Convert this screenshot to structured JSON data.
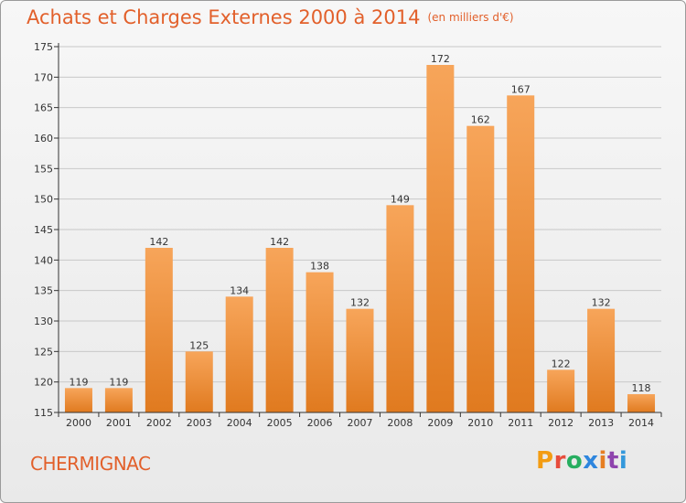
{
  "header": {
    "title": "Achats et Charges Externes 2000 à 2014",
    "subtitle": "(en milliers d'€)"
  },
  "footer": {
    "commune": "CHERMIGNAC",
    "logo": "Proxiti",
    "logo_colors": [
      "#f39c12",
      "#e74c3c",
      "#27ae60",
      "#2e86de",
      "#e67e22",
      "#8e44ad",
      "#3498db"
    ]
  },
  "colors": {
    "title": "#e2602b",
    "bar_light": "#f7a55a",
    "bar_dark": "#e07a1f",
    "grid": "#c8c8c8",
    "axis": "#333333"
  },
  "chart_data": {
    "type": "bar",
    "categories": [
      "2000",
      "2001",
      "2002",
      "2003",
      "2004",
      "2005",
      "2006",
      "2007",
      "2008",
      "2009",
      "2010",
      "2011",
      "2012",
      "2013",
      "2014"
    ],
    "values": [
      119,
      119,
      142,
      125,
      134,
      142,
      138,
      132,
      149,
      172,
      162,
      167,
      122,
      132,
      118
    ],
    "title": "Achats et Charges Externes 2000 à 2014",
    "xlabel": "",
    "ylabel": "",
    "ylim": [
      115,
      175
    ],
    "yticks": [
      115,
      120,
      125,
      130,
      135,
      140,
      145,
      150,
      155,
      160,
      165,
      170,
      175
    ],
    "grid": true,
    "data_labels": true
  }
}
